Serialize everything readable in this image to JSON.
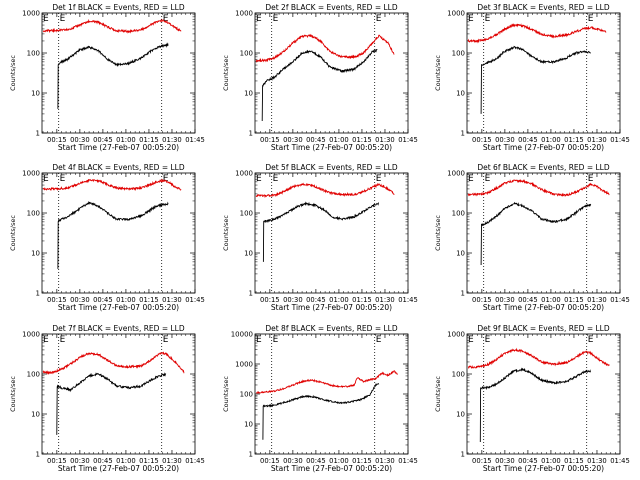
{
  "colors": {
    "events": "#000000",
    "lld": "#e00000",
    "axes": "#000000",
    "background": "#ffffff"
  },
  "chart_data": [
    {
      "type": "line",
      "title": "Det 1f BLACK = Events, RED = LLD",
      "xlabel": "Start Time (27-Feb-07 00:05:20)",
      "ylabel": "Counts/sec",
      "yscale": "log",
      "ylim": [
        1,
        1000
      ],
      "yticks": [
        "1",
        "10",
        "100",
        "1000"
      ],
      "xticks": [
        "00:15",
        "00:30",
        "00:45",
        "01:00",
        "01:15",
        "01:30",
        "01:45"
      ],
      "xlim_min": [
        5.33,
        105
      ],
      "markers": [
        {
          "x_min": 16.2,
          "label": "E"
        },
        {
          "x_min": 83.3,
          "label": "E"
        }
      ],
      "grid": false,
      "legend": "title",
      "series": [
        {
          "role": "events",
          "x_min": [
            15.7,
            15.9,
            16.3,
            22,
            30,
            36,
            42,
            48,
            54,
            62,
            70,
            76,
            80,
            84,
            87.5
          ],
          "values": [
            4,
            50,
            55,
            70,
            120,
            140,
            115,
            70,
            50,
            55,
            75,
            110,
            135,
            150,
            160
          ]
        },
        {
          "role": "lld",
          "x_min": [
            6,
            14,
            22,
            30,
            36,
            42,
            48,
            54,
            62,
            70,
            76,
            80,
            84,
            88,
            92,
            96
          ],
          "values": [
            360,
            365,
            380,
            500,
            620,
            590,
            450,
            360,
            350,
            380,
            500,
            600,
            650,
            560,
            430,
            350
          ]
        }
      ]
    },
    {
      "type": "line",
      "title": "Det 2f BLACK = Events, RED = LLD",
      "xlabel": "Start Time (27-Feb-07 00:05:20)",
      "ylabel": "Counts/sec",
      "yscale": "log",
      "ylim": [
        1,
        1000
      ],
      "yticks": [
        "1",
        "10",
        "100",
        "1000"
      ],
      "xticks": [
        "00:15",
        "00:30",
        "00:45",
        "01:00",
        "01:15",
        "01:30",
        "01:45"
      ],
      "xlim_min": [
        5.33,
        105
      ],
      "markers": [
        {
          "x_min": 16.2,
          "label": "E"
        },
        {
          "x_min": 83.3,
          "label": "E"
        }
      ],
      "grid": false,
      "legend": "title",
      "series": [
        {
          "role": "events",
          "x_min": [
            10,
            10.3,
            13,
            18,
            24,
            30,
            36,
            42,
            48,
            54,
            62,
            70,
            76,
            82,
            85
          ],
          "values": [
            2,
            15,
            20,
            25,
            40,
            60,
            100,
            110,
            80,
            45,
            35,
            40,
            60,
            110,
            120
          ]
        },
        {
          "role": "lld",
          "x_min": [
            6,
            12,
            18,
            24,
            30,
            36,
            42,
            48,
            54,
            62,
            70,
            76,
            82,
            86,
            92,
            96
          ],
          "values": [
            65,
            65,
            75,
            110,
            180,
            260,
            270,
            200,
            110,
            80,
            80,
            100,
            180,
            270,
            180,
            90
          ]
        }
      ]
    },
    {
      "type": "line",
      "title": "Det 3f BLACK = Events, RED = LLD",
      "xlabel": "Start Time (27-Feb-07 00:05:20)",
      "ylabel": "Counts/sec",
      "yscale": "log",
      "ylim": [
        1,
        1000
      ],
      "yticks": [
        "1",
        "10",
        "100",
        "1000"
      ],
      "xticks": [
        "00:15",
        "00:30",
        "00:45",
        "01:00",
        "01:15",
        "01:30",
        "01:45"
      ],
      "xlim_min": [
        5.33,
        105
      ],
      "markers": [
        {
          "x_min": 16.2,
          "label": "E"
        },
        {
          "x_min": 83.3,
          "label": "E"
        }
      ],
      "grid": false,
      "legend": "title",
      "series": [
        {
          "role": "events",
          "x_min": [
            14.5,
            14.8,
            18,
            24,
            30,
            36,
            42,
            48,
            54,
            62,
            70,
            76,
            82,
            86
          ],
          "values": [
            3,
            50,
            55,
            70,
            110,
            140,
            120,
            80,
            60,
            60,
            75,
            100,
            110,
            100
          ]
        },
        {
          "role": "lld",
          "x_min": [
            6,
            12,
            18,
            24,
            30,
            36,
            42,
            48,
            54,
            62,
            70,
            76,
            82,
            86,
            92,
            96
          ],
          "values": [
            200,
            200,
            220,
            280,
            400,
            500,
            480,
            380,
            290,
            260,
            280,
            340,
            410,
            430,
            380,
            330
          ]
        }
      ]
    },
    {
      "type": "line",
      "title": "Det 4f BLACK = Events, RED = LLD",
      "xlabel": "Start Time (27-Feb-07 00:05:20)",
      "ylabel": "Counts/sec",
      "yscale": "log",
      "ylim": [
        1,
        1000
      ],
      "yticks": [
        "1",
        "10",
        "100",
        "1000"
      ],
      "xticks": [
        "00:15",
        "00:30",
        "00:45",
        "01:00",
        "01:15",
        "01:30",
        "01:45"
      ],
      "xlim_min": [
        5.33,
        105
      ],
      "markers": [
        {
          "x_min": 16.2,
          "label": "E"
        },
        {
          "x_min": 83.3,
          "label": "E"
        }
      ],
      "grid": false,
      "legend": "title",
      "series": [
        {
          "role": "events",
          "x_min": [
            15.7,
            15.9,
            16.3,
            22,
            30,
            36,
            42,
            48,
            54,
            62,
            70,
            76,
            80,
            84,
            87.5
          ],
          "values": [
            4,
            60,
            65,
            80,
            130,
            180,
            150,
            100,
            70,
            70,
            85,
            120,
            150,
            160,
            170
          ]
        },
        {
          "role": "lld",
          "x_min": [
            6,
            14,
            22,
            30,
            36,
            42,
            48,
            54,
            62,
            70,
            76,
            80,
            84,
            88,
            92,
            96
          ],
          "values": [
            400,
            400,
            420,
            550,
            660,
            640,
            520,
            420,
            400,
            420,
            520,
            610,
            650,
            600,
            450,
            380
          ]
        }
      ]
    },
    {
      "type": "line",
      "title": "Det 5f BLACK = Events, RED = LLD",
      "xlabel": "Start Time (27-Feb-07 00:05:20)",
      "ylabel": "Counts/sec",
      "yscale": "log",
      "ylim": [
        1,
        1000
      ],
      "yticks": [
        "1",
        "10",
        "100",
        "1000"
      ],
      "xticks": [
        "00:15",
        "00:30",
        "00:45",
        "01:00",
        "01:15",
        "01:30",
        "01:45"
      ],
      "xlim_min": [
        5.33,
        105
      ],
      "markers": [
        {
          "x_min": 16.2,
          "label": "E"
        },
        {
          "x_min": 83.3,
          "label": "E"
        }
      ],
      "grid": false,
      "legend": "title",
      "series": [
        {
          "role": "events",
          "x_min": [
            10.8,
            11,
            14,
            20,
            26,
            32,
            38,
            44,
            50,
            56,
            62,
            70,
            76,
            82,
            86
          ],
          "values": [
            6,
            60,
            65,
            75,
            100,
            140,
            170,
            160,
            120,
            80,
            70,
            80,
            110,
            150,
            170
          ]
        },
        {
          "role": "lld",
          "x_min": [
            6,
            12,
            18,
            24,
            30,
            36,
            42,
            48,
            54,
            62,
            70,
            76,
            82,
            86,
            92,
            96
          ],
          "values": [
            270,
            270,
            280,
            340,
            450,
            520,
            500,
            400,
            320,
            290,
            290,
            340,
            450,
            520,
            400,
            300
          ]
        }
      ]
    },
    {
      "type": "line",
      "title": "Det 6f BLACK = Events, RED = LLD",
      "xlabel": "Start Time (27-Feb-07 00:05:20)",
      "ylabel": "Counts/sec",
      "yscale": "log",
      "ylim": [
        1,
        1000
      ],
      "yticks": [
        "1",
        "10",
        "100",
        "1000"
      ],
      "xticks": [
        "00:15",
        "00:30",
        "00:45",
        "01:00",
        "01:15",
        "01:30",
        "01:45"
      ],
      "xlim_min": [
        5.33,
        105
      ],
      "markers": [
        {
          "x_min": 16.2,
          "label": "E"
        },
        {
          "x_min": 83.3,
          "label": "E"
        }
      ],
      "grid": false,
      "legend": "title",
      "series": [
        {
          "role": "events",
          "x_min": [
            14.5,
            14.8,
            18,
            24,
            30,
            36,
            42,
            48,
            54,
            62,
            70,
            76,
            82,
            86
          ],
          "values": [
            5,
            50,
            55,
            80,
            130,
            170,
            150,
            110,
            70,
            60,
            70,
            100,
            150,
            160
          ]
        },
        {
          "role": "lld",
          "x_min": [
            6,
            12,
            18,
            24,
            30,
            36,
            42,
            48,
            54,
            62,
            70,
            76,
            82,
            86,
            90,
            94,
            98
          ],
          "values": [
            290,
            290,
            310,
            400,
            560,
            640,
            620,
            520,
            380,
            290,
            280,
            330,
            430,
            520,
            460,
            360,
            290
          ]
        }
      ]
    },
    {
      "type": "line",
      "title": "Det 7f BLACK = Events, RED = LLD",
      "xlabel": "Start Time (27-Feb-07 00:05:20)",
      "ylabel": "Counts/sec",
      "yscale": "log",
      "ylim": [
        1,
        1000
      ],
      "yticks": [
        "1",
        "10",
        "100",
        "1000"
      ],
      "xticks": [
        "00:15",
        "00:30",
        "00:45",
        "01:00",
        "01:15",
        "01:30",
        "01:45"
      ],
      "xlim_min": [
        5.33,
        105
      ],
      "markers": [
        {
          "x_min": 16.2,
          "label": "E"
        },
        {
          "x_min": 83.3,
          "label": "E"
        }
      ],
      "grid": false,
      "legend": "title",
      "series": [
        {
          "role": "events",
          "x_min": [
            15,
            15.2,
            18,
            24,
            30,
            36,
            42,
            48,
            54,
            62,
            70,
            76,
            82,
            86
          ],
          "values": [
            3,
            50,
            45,
            40,
            60,
            90,
            100,
            75,
            50,
            45,
            50,
            70,
            90,
            100
          ]
        },
        {
          "role": "lld",
          "x_min": [
            6,
            12,
            18,
            24,
            30,
            36,
            42,
            48,
            54,
            62,
            70,
            76,
            82,
            86,
            92,
            98
          ],
          "values": [
            110,
            110,
            130,
            180,
            260,
            330,
            310,
            220,
            160,
            150,
            160,
            220,
            320,
            330,
            200,
            110
          ]
        }
      ]
    },
    {
      "type": "line",
      "title": "Det 8f BLACK = Events, RED = LLD",
      "xlabel": "Start Time (27-Feb-07 00:05:20)",
      "ylabel": "Counts/sec",
      "yscale": "log",
      "ylim": [
        1,
        10000
      ],
      "yticks": [
        "1",
        "10",
        "100",
        "1000",
        "10000"
      ],
      "xticks": [
        "00:15",
        "00:30",
        "00:45",
        "01:00",
        "01:15",
        "01:30",
        "01:45"
      ],
      "xlim_min": [
        5.33,
        105
      ],
      "markers": [
        {
          "x_min": 16.2,
          "label": "E"
        },
        {
          "x_min": 83.3,
          "label": "E"
        }
      ],
      "grid": false,
      "legend": "title",
      "series": [
        {
          "role": "events",
          "x_min": [
            10.5,
            10.7,
            14,
            20,
            26,
            32,
            38,
            44,
            50,
            56,
            62,
            68,
            74,
            80,
            84,
            86
          ],
          "values": [
            3,
            40,
            40,
            45,
            55,
            70,
            85,
            80,
            65,
            55,
            50,
            55,
            65,
            90,
            200,
            220
          ]
        },
        {
          "role": "lld",
          "x_min": [
            6,
            12,
            18,
            24,
            30,
            36,
            42,
            48,
            54,
            60,
            66,
            70,
            72,
            76,
            80,
            84,
            88,
            92,
            96,
            98
          ],
          "values": [
            110,
            115,
            125,
            150,
            200,
            260,
            290,
            250,
            200,
            175,
            180,
            200,
            350,
            260,
            300,
            330,
            500,
            420,
            580,
            450
          ]
        }
      ]
    },
    {
      "type": "line",
      "title": "Det 9f BLACK = Events, RED = LLD",
      "xlabel": "Start Time (27-Feb-07 00:05:20)",
      "ylabel": "Counts/sec",
      "yscale": "log",
      "ylim": [
        1,
        1000
      ],
      "yticks": [
        "1",
        "10",
        "100",
        "1000"
      ],
      "xticks": [
        "00:15",
        "00:30",
        "00:45",
        "01:00",
        "01:15",
        "01:30",
        "01:45"
      ],
      "xlim_min": [
        5.33,
        105
      ],
      "markers": [
        {
          "x_min": 16.2,
          "label": "E"
        },
        {
          "x_min": 83.3,
          "label": "E"
        }
      ],
      "grid": false,
      "legend": "title",
      "series": [
        {
          "role": "events",
          "x_min": [
            14,
            14.2,
            18,
            24,
            30,
            36,
            42,
            48,
            54,
            62,
            70,
            76,
            82,
            86
          ],
          "values": [
            2,
            45,
            45,
            55,
            80,
            120,
            130,
            100,
            70,
            60,
            65,
            85,
            115,
            120
          ]
        },
        {
          "role": "lld",
          "x_min": [
            6,
            12,
            18,
            24,
            30,
            36,
            42,
            48,
            54,
            62,
            70,
            76,
            82,
            86,
            92,
            98
          ],
          "values": [
            150,
            150,
            165,
            220,
            330,
            400,
            370,
            280,
            200,
            175,
            190,
            260,
            360,
            330,
            220,
            160
          ]
        }
      ]
    }
  ]
}
